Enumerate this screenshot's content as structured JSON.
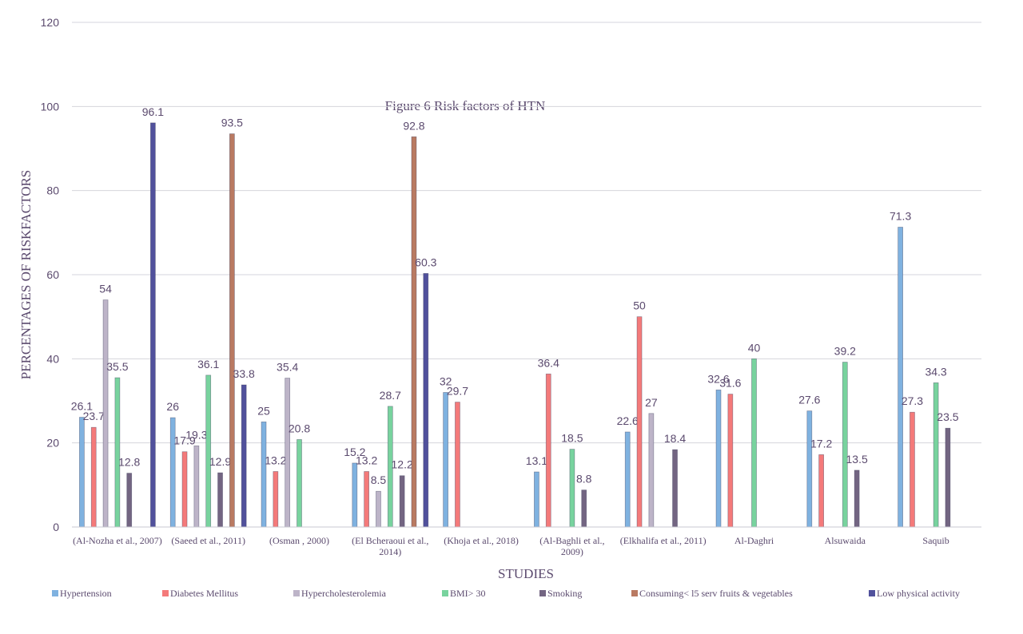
{
  "chart_data": {
    "type": "bar",
    "title": "Figure 6 Risk factors of HTN",
    "x_label": "STUDIES",
    "y_label": "PERCENTAGES OF RISKFACTORS",
    "categories": [
      "(Al-Nozha et al., 2007)",
      "(Saeed et al., 2011)",
      "(Osman , 2000)",
      "(El Bcheraoui et al., 2014)",
      "(Khoja et al., 2018)",
      "(Al-Baghli et al., 2009)",
      "(Elkhalifa et al., 2011)",
      "Al-Daghri",
      "Alsuwaida",
      "Saquib"
    ],
    "series": [
      {
        "name": "Hypertension",
        "color": "#7fb2e0",
        "values": [
          26.1,
          26,
          25,
          15.2,
          32,
          13.1,
          22.6,
          32.6,
          27.6,
          71.3
        ]
      },
      {
        "name": "Diabetes Mellitus",
        "color": "#f47a7a",
        "values": [
          23.7,
          17.9,
          13.2,
          13.2,
          29.7,
          36.4,
          50,
          31.6,
          17.2,
          27.3
        ]
      },
      {
        "name": "Hypercholesterolemia",
        "color": "#bdb4c8",
        "values": [
          54,
          19.3,
          35.4,
          8.5,
          null,
          null,
          27,
          null,
          null,
          null
        ]
      },
      {
        "name": "BMI>   30",
        "color": "#78d39e",
        "values": [
          35.5,
          36.1,
          20.8,
          28.7,
          null,
          18.5,
          null,
          40,
          39.2,
          34.3
        ]
      },
      {
        "name": "Smoking",
        "color": "#736582",
        "values": [
          12.8,
          12.9,
          null,
          12.2,
          null,
          8.8,
          18.4,
          null,
          13.5,
          23.5
        ]
      },
      {
        "name": "Consuming< l5 serv  fruits & vegetables",
        "color": "#b97a62",
        "values": [
          null,
          93.5,
          null,
          92.8,
          null,
          null,
          null,
          null,
          null,
          null
        ]
      },
      {
        "name": "Low physical activity",
        "color": "#51519c",
        "values": [
          96.1,
          33.8,
          null,
          60.3,
          null,
          null,
          null,
          null,
          null,
          null
        ]
      }
    ],
    "ylim": [
      0,
      120
    ],
    "yticks": [
      0,
      20,
      40,
      60,
      80,
      100,
      120
    ],
    "grid": true,
    "legend": "bottom"
  }
}
